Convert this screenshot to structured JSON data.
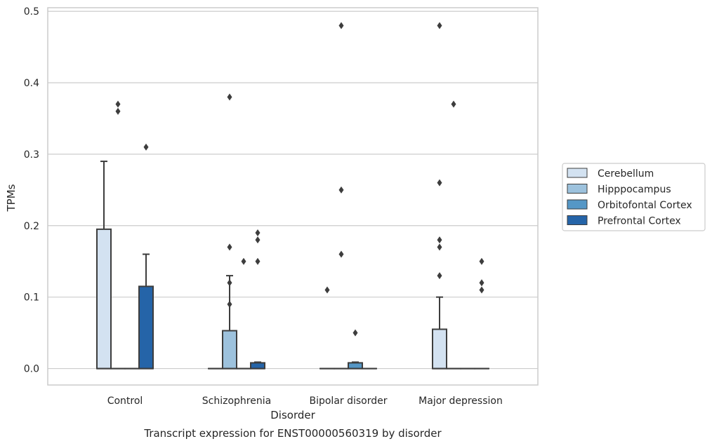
{
  "caption": "Transcript expression for ENST00000560319 by disorder",
  "chart_data": {
    "type": "box",
    "title": "",
    "xlabel": "Disorder",
    "ylabel": "TPMs",
    "ylim": [
      -0.023,
      0.505
    ],
    "yticks": [
      "0.0",
      "0.1",
      "0.2",
      "0.3",
      "0.4",
      "0.5"
    ],
    "ytick_values": [
      0,
      0.1,
      0.2,
      0.3,
      0.4,
      0.5
    ],
    "categories": [
      "Control",
      "Schizophrenia",
      "Bipolar disorder",
      "Major depression"
    ],
    "grid": "horizontal",
    "legend_position": "right",
    "series": [
      {
        "name": "Cerebellum",
        "color": "#d3e2f1",
        "boxes": [
          {
            "q1": 0,
            "median": 0,
            "q3": 0.195,
            "whisker_low": 0,
            "whisker_high": 0.29,
            "outliers": []
          },
          {
            "q1": 0,
            "median": 0,
            "q3": 0,
            "whisker_low": 0,
            "whisker_high": 0,
            "outliers": []
          },
          {
            "q1": 0,
            "median": 0,
            "q3": 0,
            "whisker_low": 0,
            "whisker_high": 0,
            "outliers": [
              0.11
            ]
          },
          {
            "q1": 0,
            "median": 0,
            "q3": 0.055,
            "whisker_low": 0,
            "whisker_high": 0.1,
            "outliers": [
              0.13,
              0.17,
              0.18,
              0.26,
              0.48
            ]
          }
        ]
      },
      {
        "name": "Hipppocampus",
        "color": "#9dc2dd",
        "boxes": [
          {
            "q1": 0,
            "median": 0,
            "q3": 0,
            "whisker_low": 0,
            "whisker_high": 0,
            "outliers": [
              0.36,
              0.37
            ]
          },
          {
            "q1": 0,
            "median": 0,
            "q3": 0.053,
            "whisker_low": 0,
            "whisker_high": 0.13,
            "outliers": [
              0.09,
              0.12,
              0.17,
              0.38
            ]
          },
          {
            "q1": 0,
            "median": 0,
            "q3": 0,
            "whisker_low": 0,
            "whisker_high": 0,
            "outliers": [
              0.16,
              0.25,
              0.48
            ]
          },
          {
            "q1": 0,
            "median": 0,
            "q3": 0,
            "whisker_low": 0,
            "whisker_high": 0,
            "outliers": [
              0.37
            ]
          }
        ]
      },
      {
        "name": "Orbitofontal Cortex",
        "color": "#5597c6",
        "boxes": [
          {
            "q1": 0,
            "median": 0,
            "q3": 0,
            "whisker_low": 0,
            "whisker_high": 0,
            "outliers": []
          },
          {
            "q1": 0,
            "median": 0,
            "q3": 0,
            "whisker_low": 0,
            "whisker_high": 0,
            "outliers": [
              0.15
            ]
          },
          {
            "q1": 0,
            "median": 0,
            "q3": 0.008,
            "whisker_low": 0,
            "whisker_high": 0.009,
            "outliers": [
              0.05
            ]
          },
          {
            "q1": 0,
            "median": 0,
            "q3": 0,
            "whisker_low": 0,
            "whisker_high": 0,
            "outliers": []
          }
        ]
      },
      {
        "name": "Prefrontal Cortex",
        "color": "#2564a8",
        "boxes": [
          {
            "q1": 0,
            "median": 0,
            "q3": 0.115,
            "whisker_low": 0,
            "whisker_high": 0.16,
            "outliers": [
              0.31
            ]
          },
          {
            "q1": 0,
            "median": 0,
            "q3": 0.008,
            "whisker_low": 0,
            "whisker_high": 0.009,
            "outliers": [
              0.15,
              0.18,
              0.19
            ]
          },
          {
            "q1": 0,
            "median": 0,
            "q3": 0,
            "whisker_low": 0,
            "whisker_high": 0,
            "outliers": []
          },
          {
            "q1": 0,
            "median": 0,
            "q3": 0,
            "whisker_low": 0,
            "whisker_high": 0,
            "outliers": [
              0.11,
              0.12,
              0.15
            ]
          }
        ]
      }
    ]
  }
}
